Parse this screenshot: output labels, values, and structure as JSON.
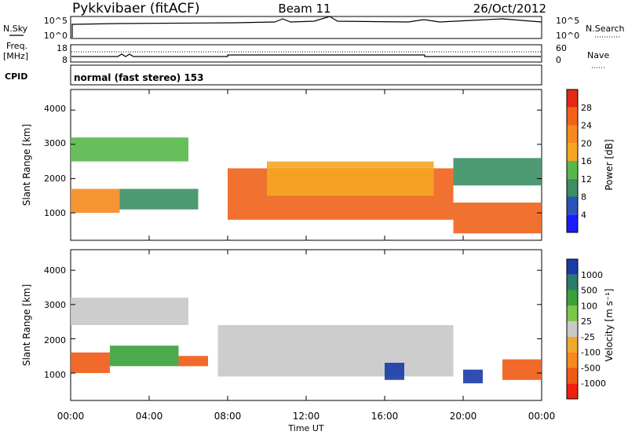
{
  "header": {
    "station": "Pykkvibaer (fitACF)",
    "beam": "Beam 11",
    "date": "26/Oct/2012"
  },
  "nsky_panel": {
    "left_label": "N.Sky",
    "left_ticks": [
      "10^5",
      "10^0"
    ],
    "right_label": "N.Search",
    "right_ticks": [
      "10^5",
      "10^0"
    ]
  },
  "freq_panel": {
    "left_label_1": "Freq.",
    "left_label_2": "[MHz]",
    "left_ticks": [
      "18",
      "8"
    ],
    "right_label": "Nave",
    "right_ticks": [
      "60",
      "0"
    ]
  },
  "cpid_panel": {
    "label": "CPID",
    "mode": "normal (fast stereo) 153"
  },
  "colors": {
    "power_scale": [
      "#1a1aff",
      "#2a55b8",
      "#3b8f63",
      "#55b84a",
      "#f5a623",
      "#f58a1e",
      "#f0621a",
      "#e22a14"
    ],
    "velocity_scale": [
      "#f02010",
      "#f05a14",
      "#f58a1e",
      "#f0a830",
      "#c8c8c8",
      "#7ac84a",
      "#3aa03a",
      "#2a7d6a",
      "#1a3aa8"
    ]
  },
  "chart_data": [
    {
      "type": "heatmap",
      "title": "Power",
      "ylabel": "Slant Range [km]",
      "y_ticks": [
        "1000",
        "2000",
        "3000",
        "4000"
      ],
      "ylim": [
        200,
        4600
      ],
      "xlim": [
        0,
        24
      ],
      "colorbar": {
        "label": "Power [dB]",
        "ticks": [
          "4",
          "8",
          "12",
          "16",
          "20",
          "24",
          "28"
        ],
        "range": [
          0,
          32
        ]
      },
      "regions": [
        {
          "t": [
            0.0,
            2.5
          ],
          "range": [
            1000,
            1700
          ],
          "value": 20
        },
        {
          "t": [
            2.5,
            6.5
          ],
          "range": [
            1100,
            1700
          ],
          "value": 10
        },
        {
          "t": [
            0.0,
            6.0
          ],
          "range": [
            2500,
            3200
          ],
          "value": 12
        },
        {
          "t": [
            8.0,
            19.5
          ],
          "range": [
            800,
            2300
          ],
          "value": 26
        },
        {
          "t": [
            10.0,
            18.5
          ],
          "range": [
            1500,
            2500
          ],
          "value": 18
        },
        {
          "t": [
            19.5,
            24.0
          ],
          "range": [
            400,
            1300
          ],
          "value": 24
        },
        {
          "t": [
            19.5,
            24.0
          ],
          "range": [
            1800,
            2600
          ],
          "value": 10
        }
      ]
    },
    {
      "type": "heatmap",
      "title": "Velocity",
      "xlabel": "Time UT",
      "ylabel": "Slant Range [km]",
      "y_ticks": [
        "1000",
        "2000",
        "3000",
        "4000"
      ],
      "x_ticks": [
        "00:00",
        "04:00",
        "08:00",
        "12:00",
        "16:00",
        "20:00",
        "00:00"
      ],
      "ylim": [
        200,
        4600
      ],
      "xlim": [
        0,
        24
      ],
      "colorbar": {
        "label": "Velocity [m s⁻¹]",
        "ticks": [
          "1000",
          "500",
          "100",
          "25",
          "-25",
          "-100",
          "-500",
          "-1000"
        ]
      },
      "regions": [
        {
          "t": [
            0.0,
            2.0
          ],
          "range": [
            1000,
            1600
          ],
          "value": -300
        },
        {
          "t": [
            2.0,
            5.5
          ],
          "range": [
            1200,
            1800
          ],
          "value": 150
        },
        {
          "t": [
            5.5,
            7.0
          ],
          "range": [
            1200,
            1500
          ],
          "value": -200
        },
        {
          "t": [
            0.0,
            6.0
          ],
          "range": [
            2400,
            3200
          ],
          "value": 0
        },
        {
          "t": [
            7.5,
            19.5
          ],
          "range": [
            900,
            2400
          ],
          "value": 0
        },
        {
          "t": [
            16.0,
            17.0
          ],
          "range": [
            800,
            1300
          ],
          "value": 800
        },
        {
          "t": [
            20.0,
            21.0
          ],
          "range": [
            700,
            1100
          ],
          "value": 800
        },
        {
          "t": [
            22.0,
            24.0
          ],
          "range": [
            800,
            1400
          ],
          "value": -300
        }
      ]
    }
  ]
}
